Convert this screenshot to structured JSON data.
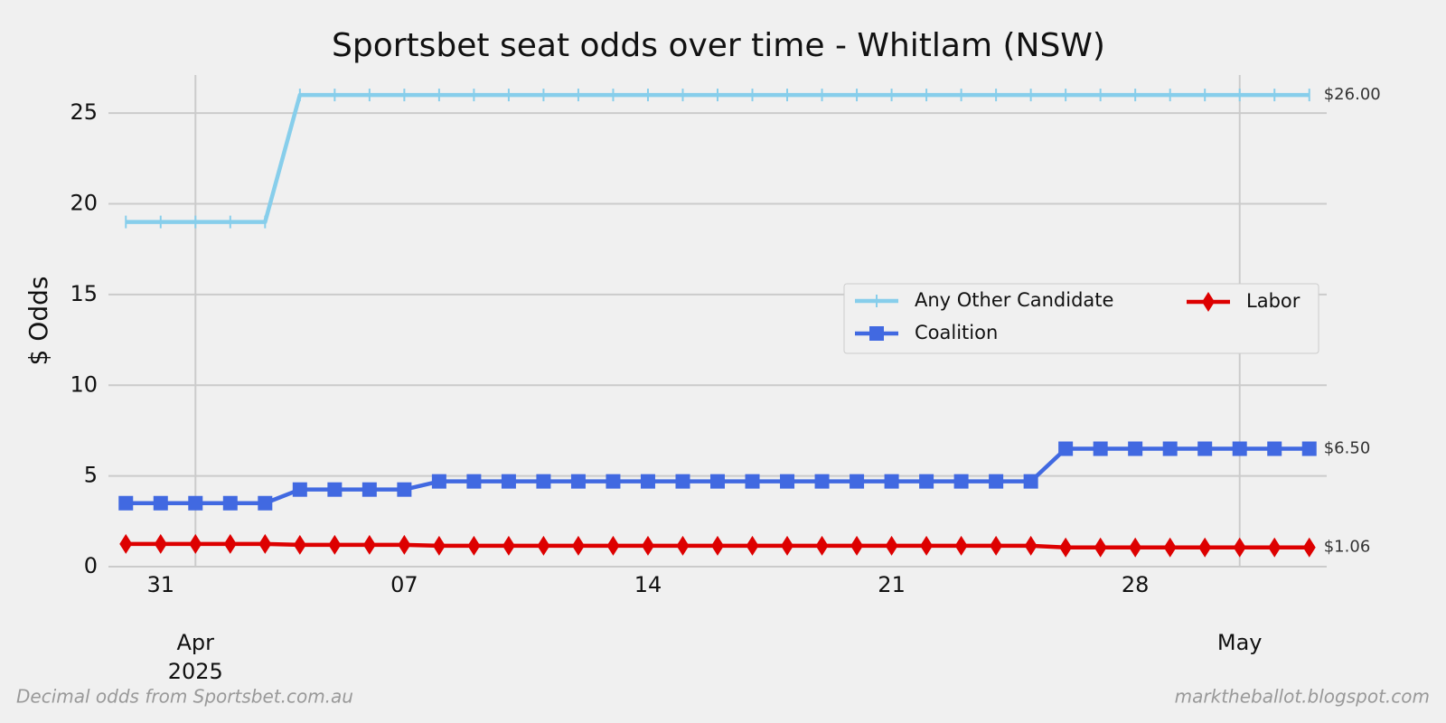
{
  "chart_data": {
    "type": "line",
    "title": "Sportsbet seat odds over time - Whitlam (NSW)",
    "y_label": "$ Odds",
    "footnote_left": "Decimal odds from Sportsbet.com.au",
    "footnote_right": "marktheballot.blogspot.com",
    "x": [
      "2025-03-30",
      "2025-03-31",
      "2025-04-01",
      "2025-04-02",
      "2025-04-03",
      "2025-04-04",
      "2025-04-05",
      "2025-04-06",
      "2025-04-07",
      "2025-04-08",
      "2025-04-09",
      "2025-04-10",
      "2025-04-11",
      "2025-04-12",
      "2025-04-13",
      "2025-04-14",
      "2025-04-15",
      "2025-04-16",
      "2025-04-17",
      "2025-04-18",
      "2025-04-19",
      "2025-04-20",
      "2025-04-21",
      "2025-04-22",
      "2025-04-23",
      "2025-04-24",
      "2025-04-25",
      "2025-04-26",
      "2025-04-27",
      "2025-04-28",
      "2025-04-29",
      "2025-04-30",
      "2025-05-01",
      "2025-05-02",
      "2025-05-03"
    ],
    "xlim": [
      "2025-03-29T12:00",
      "2025-05-03T12:00"
    ],
    "xticks": [
      {
        "value": "2025-03-31",
        "label": "31"
      },
      {
        "value": "2025-04-07",
        "label": "07"
      },
      {
        "value": "2025-04-14",
        "label": "14"
      },
      {
        "value": "2025-04-21",
        "label": "21"
      },
      {
        "value": "2025-04-28",
        "label": "28"
      }
    ],
    "xticks_major": [
      {
        "value": "2025-04-01",
        "label": "Apr",
        "sublabel": "2025"
      },
      {
        "value": "2025-05-01",
        "label": "May"
      }
    ],
    "ylim": [
      0,
      27.1
    ],
    "yticks": [
      0,
      5,
      10,
      15,
      20,
      25
    ],
    "grid": true,
    "legend": "center right",
    "series": [
      {
        "name": "Any Other Candidate",
        "color": "#87ceeb",
        "marker": "|",
        "values": [
          19,
          19,
          19,
          19,
          19,
          26,
          26,
          26,
          26,
          26,
          26,
          26,
          26,
          26,
          26,
          26,
          26,
          26,
          26,
          26,
          26,
          26,
          26,
          26,
          26,
          26,
          26,
          26,
          26,
          26,
          26,
          26,
          26,
          26,
          26
        ],
        "value_labels": [
          null,
          null,
          null,
          null,
          null,
          null,
          null,
          null,
          null,
          null,
          null,
          null,
          null,
          null,
          null,
          null,
          null,
          null,
          null,
          null,
          null,
          null,
          null,
          null,
          null,
          null,
          null,
          null,
          null,
          null,
          null,
          null,
          null,
          null,
          "$26.00"
        ]
      },
      {
        "name": "Coalition",
        "color": "#4169e1",
        "marker": "s",
        "values": [
          3.5,
          3.5,
          3.5,
          3.5,
          3.5,
          4.25,
          4.25,
          4.25,
          4.25,
          4.7,
          4.7,
          4.7,
          4.7,
          4.7,
          4.7,
          4.7,
          4.7,
          4.7,
          4.7,
          4.7,
          4.7,
          4.7,
          4.7,
          4.7,
          4.7,
          4.7,
          4.7,
          6.5,
          6.5,
          6.5,
          6.5,
          6.5,
          6.5,
          6.5,
          6.5
        ],
        "value_labels": [
          null,
          null,
          null,
          null,
          null,
          null,
          null,
          null,
          null,
          null,
          null,
          null,
          null,
          null,
          null,
          null,
          null,
          null,
          null,
          null,
          null,
          null,
          null,
          null,
          null,
          null,
          null,
          null,
          null,
          null,
          null,
          null,
          null,
          null,
          "$6.50"
        ]
      },
      {
        "name": "Labor",
        "color": "#dd0000",
        "marker": "d",
        "values": [
          1.25,
          1.25,
          1.25,
          1.25,
          1.25,
          1.2,
          1.2,
          1.2,
          1.2,
          1.15,
          1.15,
          1.15,
          1.15,
          1.15,
          1.15,
          1.15,
          1.15,
          1.15,
          1.15,
          1.15,
          1.15,
          1.15,
          1.15,
          1.15,
          1.15,
          1.15,
          1.15,
          1.06,
          1.06,
          1.06,
          1.06,
          1.06,
          1.06,
          1.06,
          1.06
        ],
        "value_labels": [
          null,
          null,
          null,
          null,
          null,
          null,
          null,
          null,
          null,
          null,
          null,
          null,
          null,
          null,
          null,
          null,
          null,
          null,
          null,
          null,
          null,
          null,
          null,
          null,
          null,
          null,
          null,
          null,
          null,
          null,
          null,
          null,
          null,
          null,
          "$1.06"
        ]
      }
    ]
  }
}
